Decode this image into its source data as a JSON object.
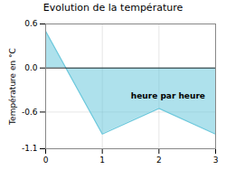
{
  "chart_data": {
    "type": "area",
    "title": "Evolution de la température",
    "ylabel": "Température en °C",
    "annotation": "heure par heure",
    "x": [
      0,
      1,
      2,
      3
    ],
    "values": [
      0.5,
      -0.9,
      -0.55,
      -0.9
    ],
    "color": "#6cc8dc",
    "xlim": [
      0,
      3
    ],
    "ylim": [
      -1.1,
      0.6
    ],
    "xticks": [
      0,
      1,
      2,
      3
    ],
    "yticks": [
      -1.1,
      -0.6,
      {
        "value": 0,
        "label": "0.0"
      },
      0.6
    ],
    "grid": true
  }
}
